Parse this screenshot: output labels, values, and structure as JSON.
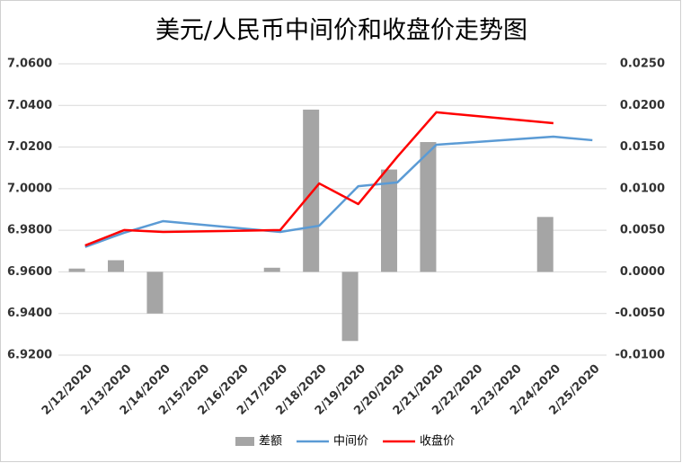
{
  "chart_data": {
    "type": "combo",
    "title": "美元/人民币中间价和收盘价走势图",
    "categories": [
      "2/12/2020",
      "2/13/2020",
      "2/14/2020",
      "2/15/2020",
      "2/16/2020",
      "2/17/2020",
      "2/18/2020",
      "2/19/2020",
      "2/20/2020",
      "2/21/2020",
      "2/22/2020",
      "2/23/2020",
      "2/24/2020",
      "2/25/2020"
    ],
    "series": [
      {
        "name": "差额",
        "type": "bar",
        "axis": "y2",
        "color": "#a5a5a5",
        "values": [
          0.0004,
          0.0014,
          -0.005,
          null,
          null,
          0.0005,
          0.0195,
          -0.0083,
          0.0123,
          0.0156,
          null,
          null,
          0.0066,
          null
        ]
      },
      {
        "name": "中间价",
        "type": "line",
        "color": "#5b9bd5",
        "values": [
          6.972,
          6.9788,
          6.9844,
          null,
          null,
          6.9792,
          6.9822,
          7.0012,
          7.003,
          7.0211,
          null,
          null,
          7.025,
          7.0233
        ]
      },
      {
        "name": "收盘价",
        "type": "line",
        "color": "#ff0000",
        "values": [
          6.9727,
          6.9801,
          6.9792,
          null,
          null,
          6.9801,
          7.0025,
          6.9926,
          7.0153,
          7.0367,
          null,
          null,
          7.0315,
          null
        ]
      }
    ],
    "connect_gaps": true,
    "ylim": [
      6.92,
      7.06
    ],
    "yticks": [
      {
        "value": 6.92,
        "label": "6.9200"
      },
      {
        "value": 6.94,
        "label": "6.9400"
      },
      {
        "value": 6.96,
        "label": "6.9600"
      },
      {
        "value": 6.98,
        "label": "6.9800"
      },
      {
        "value": 7.0,
        "label": "7.0000"
      },
      {
        "value": 7.02,
        "label": "7.0200"
      },
      {
        "value": 7.04,
        "label": "7.0400"
      },
      {
        "value": 7.06,
        "label": "7.0600"
      }
    ],
    "y2lim": [
      -0.01,
      0.025
    ],
    "y2ticks": [
      {
        "value": -0.01,
        "label": "-0.0100"
      },
      {
        "value": -0.005,
        "label": "-0.0050"
      },
      {
        "value": 0,
        "label": "0.0000"
      },
      {
        "value": 0.005,
        "label": "0.0050"
      },
      {
        "value": 0.01,
        "label": "0.0100"
      },
      {
        "value": 0.015,
        "label": "0.0150"
      },
      {
        "value": 0.02,
        "label": "0.0200"
      },
      {
        "value": 0.025,
        "label": "0.0250"
      }
    ],
    "grid": true,
    "legend": "bottom"
  }
}
